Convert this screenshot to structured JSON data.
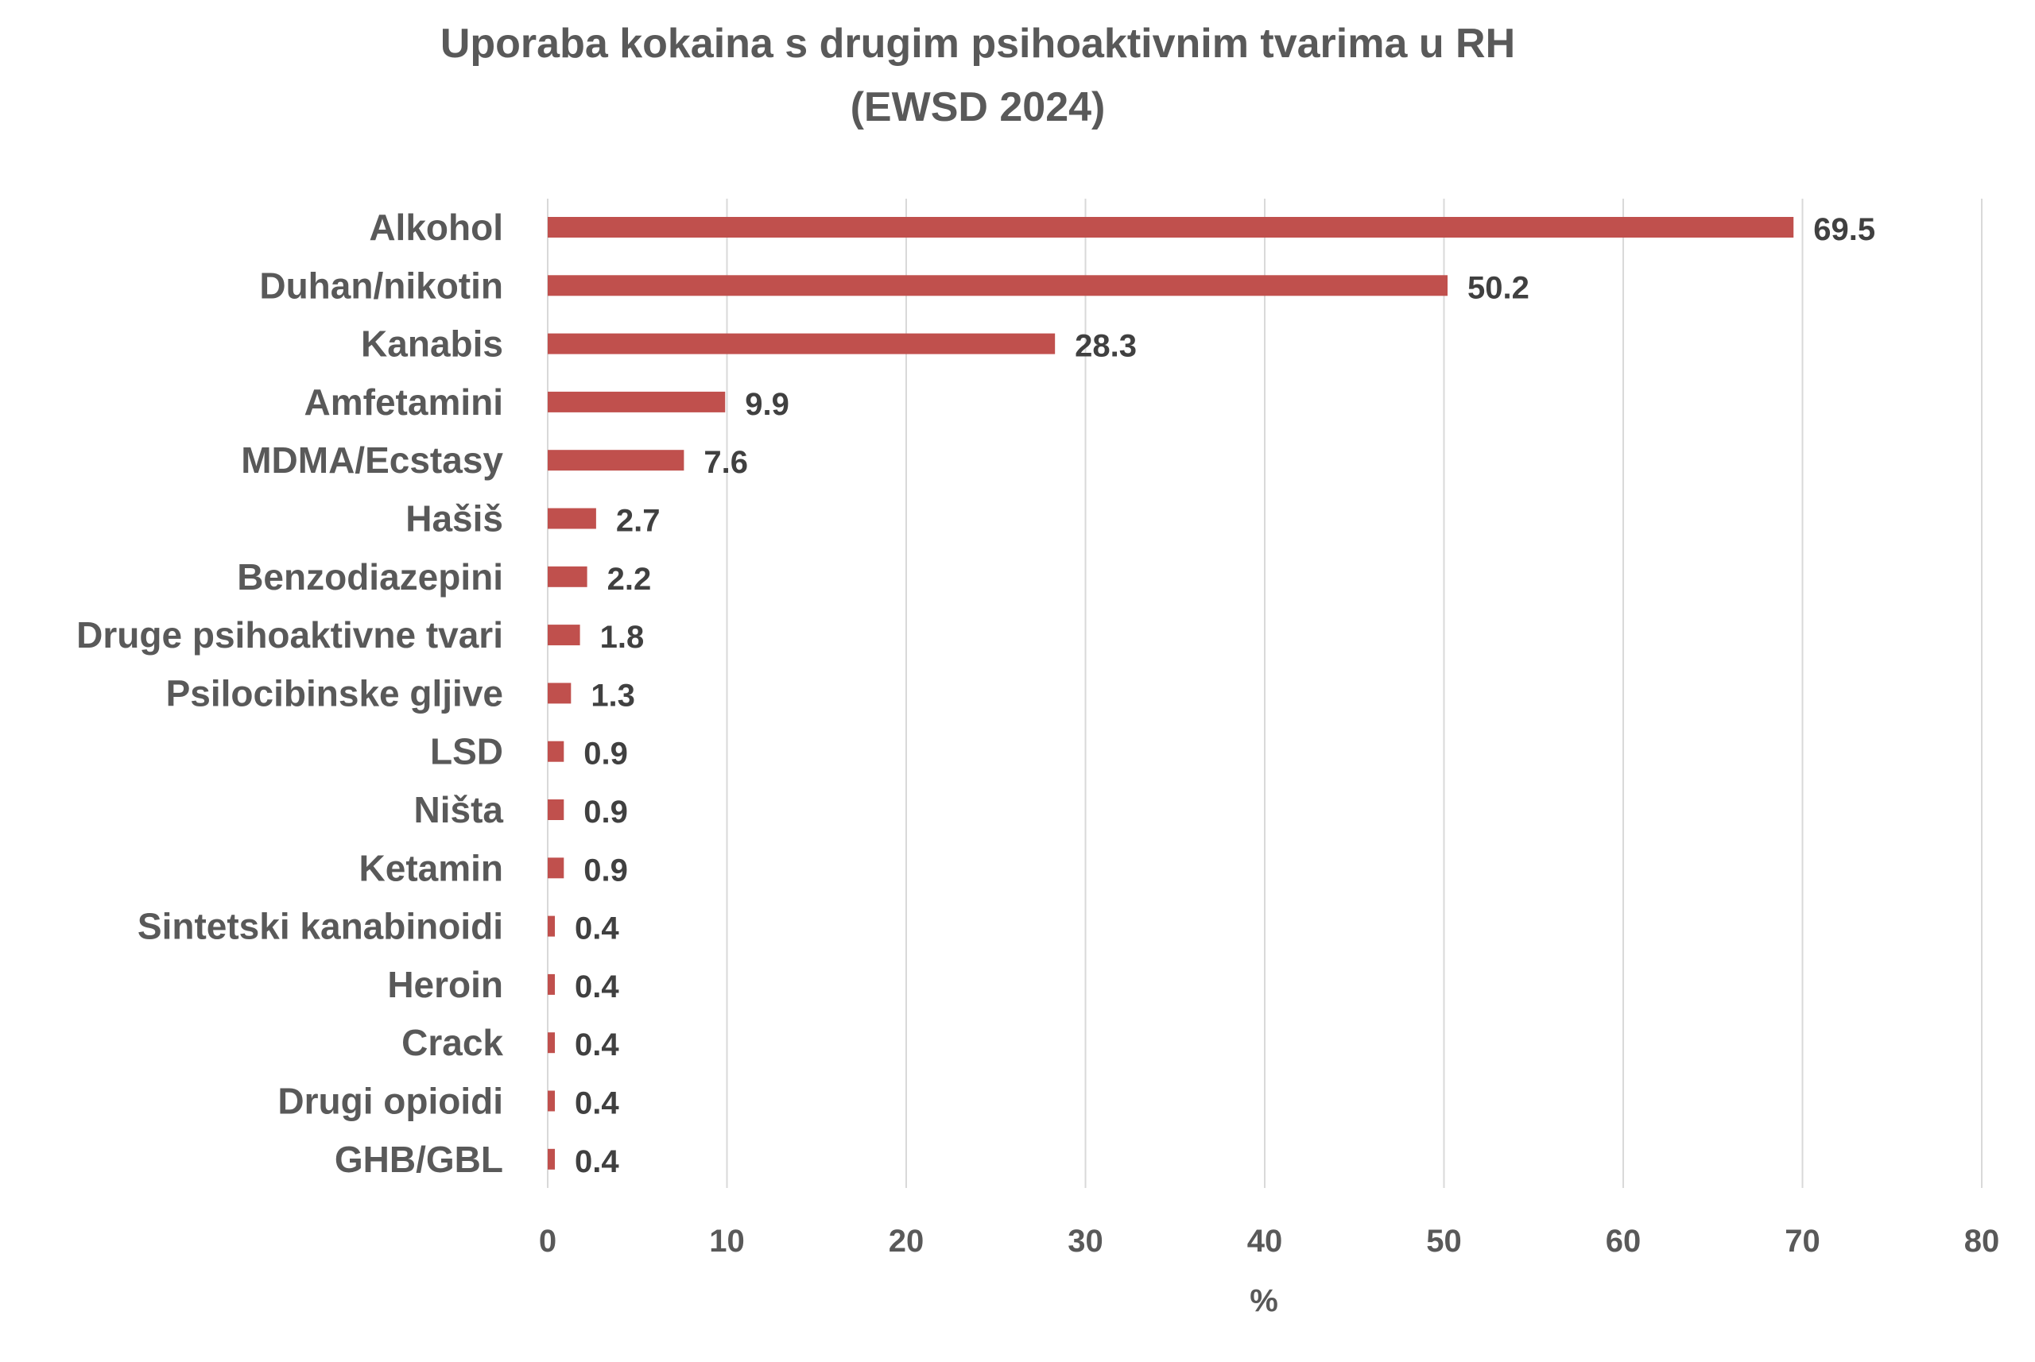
{
  "chart_data": {
    "type": "bar",
    "orientation": "horizontal",
    "title": "Uporaba kokaina s drugim psihoaktivnim tvarima u RH",
    "subtitle": "(EWSD 2024)",
    "xlabel": "%",
    "ylabel": "",
    "xlim": [
      0,
      80
    ],
    "x_ticks": [
      "0",
      "10",
      "20",
      "30",
      "40",
      "50",
      "60",
      "70",
      "80"
    ],
    "grid": true,
    "legend": "none",
    "bar_color": "#c0504d",
    "categories": [
      "Alkohol",
      "Duhan/nikotin",
      "Kanabis",
      "Amfetamini",
      "MDMA/Ecstasy",
      "Hašiš",
      "Benzodiazepini",
      "Druge psihoaktivne tvari",
      "Psilocibinske gljive",
      "LSD",
      "Ništa",
      "Ketamin",
      "Sintetski kanabinoidi",
      "Heroin",
      "Crack",
      "Drugi opioidi",
      "GHB/GBL"
    ],
    "values": [
      69.5,
      50.2,
      28.3,
      9.9,
      7.6,
      2.7,
      2.2,
      1.8,
      1.3,
      0.9,
      0.9,
      0.9,
      0.4,
      0.4,
      0.4,
      0.4,
      0.4
    ],
    "value_labels": [
      "69.5",
      "50.2",
      "28.3",
      "9.9",
      "7.6",
      "2.7",
      "2.2",
      "1.8",
      "1.3",
      "0.9",
      "0.9",
      "0.9",
      "0.4",
      "0.4",
      "0.4",
      "0.4",
      "0.4"
    ]
  }
}
